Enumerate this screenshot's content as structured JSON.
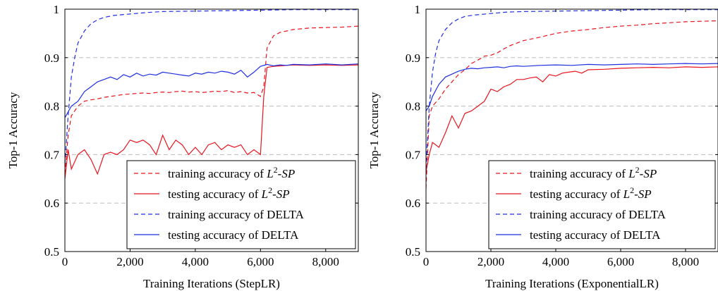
{
  "colors": {
    "red": "#e8141e",
    "blue": "#1f2fe0",
    "grid": "#bdbdbd",
    "axis": "#000000"
  },
  "legend_entries": [
    {
      "prefix": "training accuracy of ",
      "math": "L",
      "sup": "2",
      "suffix": "-SP",
      "color": "#e8141e",
      "dash": true
    },
    {
      "prefix": "testing accuracy of ",
      "math": "L",
      "sup": "2",
      "suffix": "-SP",
      "color": "#e8141e",
      "dash": false
    },
    {
      "prefix": "training accuracy of DELTA",
      "math": "",
      "sup": "",
      "suffix": "",
      "color": "#1f2fe0",
      "dash": true
    },
    {
      "prefix": "testing accuracy of DELTA",
      "math": "",
      "sup": "",
      "suffix": "",
      "color": "#1f2fe0",
      "dash": false
    }
  ],
  "chart_data": [
    {
      "type": "line",
      "xlabel": "Training Iterations (StepLR)",
      "ylabel": "Top-1 Accuracy",
      "xlim": [
        0,
        9000
      ],
      "ylim": [
        0.5,
        1.0
      ],
      "xticks": [
        0,
        2000,
        4000,
        6000,
        8000
      ],
      "xtick_labels": [
        "0",
        "2,000",
        "4,000",
        "6,000",
        "8,000"
      ],
      "yticks": [
        0.5,
        0.6,
        0.7,
        0.8,
        0.9,
        1.0
      ],
      "ytick_labels": [
        "0.5",
        "0.6",
        "0.7",
        "0.8",
        "0.9",
        "1"
      ],
      "grid": "horizontal-dashed",
      "legend_position": "bottom-right",
      "series": [
        {
          "name": "training accuracy of L2-SP",
          "x": [
            0,
            100,
            200,
            400,
            600,
            800,
            1000,
            1200,
            1400,
            1600,
            1800,
            2000,
            2200,
            2400,
            2600,
            2800,
            3000,
            3200,
            3400,
            3600,
            3800,
            4000,
            4200,
            4400,
            4600,
            4800,
            5000,
            5200,
            5400,
            5600,
            5800,
            6000,
            6100,
            6200,
            6400,
            6600,
            6800,
            7000,
            7500,
            8000,
            8500,
            9000
          ],
          "y": [
            0.66,
            0.74,
            0.78,
            0.8,
            0.81,
            0.813,
            0.815,
            0.818,
            0.82,
            0.822,
            0.824,
            0.825,
            0.826,
            0.827,
            0.826,
            0.828,
            0.829,
            0.828,
            0.83,
            0.831,
            0.829,
            0.83,
            0.828,
            0.829,
            0.831,
            0.83,
            0.832,
            0.828,
            0.83,
            0.827,
            0.828,
            0.82,
            0.84,
            0.92,
            0.945,
            0.952,
            0.955,
            0.958,
            0.961,
            0.962,
            0.963,
            0.965
          ]
        },
        {
          "name": "testing accuracy of L2-SP",
          "x": [
            0,
            100,
            200,
            400,
            600,
            800,
            1000,
            1200,
            1400,
            1600,
            1800,
            2000,
            2200,
            2400,
            2600,
            2800,
            3000,
            3200,
            3400,
            3600,
            3800,
            4000,
            4200,
            4400,
            4600,
            4800,
            5000,
            5200,
            5400,
            5600,
            5800,
            6000,
            6100,
            6200,
            6400,
            6600,
            6800,
            7000,
            7500,
            8000,
            8500,
            9000
          ],
          "y": [
            0.65,
            0.71,
            0.67,
            0.7,
            0.71,
            0.69,
            0.66,
            0.7,
            0.705,
            0.7,
            0.71,
            0.73,
            0.725,
            0.73,
            0.72,
            0.7,
            0.74,
            0.71,
            0.73,
            0.72,
            0.7,
            0.715,
            0.7,
            0.72,
            0.725,
            0.71,
            0.72,
            0.715,
            0.72,
            0.7,
            0.71,
            0.7,
            0.82,
            0.88,
            0.882,
            0.883,
            0.884,
            0.885,
            0.884,
            0.885,
            0.884,
            0.885
          ]
        },
        {
          "name": "training accuracy of DELTA",
          "x": [
            0,
            100,
            200,
            300,
            400,
            600,
            800,
            1000,
            1200,
            1500,
            2000,
            2500,
            3000,
            4000,
            5000,
            6000,
            7000,
            8000,
            9000
          ],
          "y": [
            0.68,
            0.78,
            0.86,
            0.9,
            0.93,
            0.955,
            0.97,
            0.978,
            0.983,
            0.987,
            0.99,
            0.993,
            0.995,
            0.996,
            0.997,
            0.998,
            0.999,
            0.999,
            0.999
          ]
        },
        {
          "name": "testing accuracy of DELTA",
          "x": [
            0,
            200,
            400,
            600,
            800,
            1000,
            1200,
            1400,
            1600,
            1800,
            2000,
            2200,
            2400,
            2600,
            2800,
            3000,
            3200,
            3400,
            3600,
            3800,
            4000,
            4200,
            4400,
            4600,
            4800,
            5000,
            5200,
            5400,
            5600,
            5800,
            6000,
            6200,
            6400,
            6600,
            6800,
            7000,
            7500,
            8000,
            8500,
            9000
          ],
          "y": [
            0.776,
            0.8,
            0.81,
            0.83,
            0.84,
            0.85,
            0.855,
            0.86,
            0.855,
            0.865,
            0.86,
            0.868,
            0.862,
            0.866,
            0.864,
            0.87,
            0.868,
            0.866,
            0.864,
            0.862,
            0.868,
            0.866,
            0.87,
            0.868,
            0.872,
            0.87,
            0.866,
            0.874,
            0.86,
            0.87,
            0.882,
            0.886,
            0.883,
            0.885,
            0.884,
            0.886,
            0.885,
            0.887,
            0.885,
            0.887
          ]
        }
      ]
    },
    {
      "type": "line",
      "xlabel": "Training Iterations (ExponentialLR)",
      "ylabel": "Top-1 Accuracy",
      "xlim": [
        0,
        9000
      ],
      "ylim": [
        0.5,
        1.0
      ],
      "xticks": [
        0,
        2000,
        4000,
        6000,
        8000
      ],
      "xtick_labels": [
        "0",
        "2,000",
        "4,000",
        "6,000",
        "8,000"
      ],
      "yticks": [
        0.5,
        0.6,
        0.7,
        0.8,
        0.9,
        1.0
      ],
      "ytick_labels": [
        "0.5",
        "0.6",
        "0.7",
        "0.8",
        "0.9",
        "1"
      ],
      "grid": "horizontal-dashed",
      "legend_position": "bottom-right",
      "series": [
        {
          "name": "training accuracy of L2-SP",
          "x": [
            0,
            100,
            200,
            400,
            600,
            800,
            1000,
            1200,
            1400,
            1600,
            1800,
            2000,
            2200,
            2400,
            2600,
            2800,
            3000,
            3500,
            4000,
            4500,
            5000,
            5500,
            6000,
            6500,
            7000,
            7500,
            8000,
            8500,
            9000
          ],
          "y": [
            0.63,
            0.78,
            0.8,
            0.815,
            0.835,
            0.85,
            0.865,
            0.875,
            0.888,
            0.895,
            0.903,
            0.905,
            0.91,
            0.918,
            0.925,
            0.93,
            0.935,
            0.942,
            0.95,
            0.955,
            0.958,
            0.962,
            0.965,
            0.967,
            0.97,
            0.972,
            0.974,
            0.975,
            0.976
          ]
        },
        {
          "name": "testing accuracy of L2-SP",
          "x": [
            0,
            100,
            200,
            400,
            600,
            800,
            1000,
            1200,
            1400,
            1600,
            1800,
            2000,
            2200,
            2400,
            2600,
            2800,
            3000,
            3200,
            3400,
            3600,
            3800,
            4000,
            4200,
            4400,
            4600,
            4800,
            5000,
            5500,
            6000,
            6500,
            7000,
            7500,
            8000,
            8500,
            9000
          ],
          "y": [
            0.665,
            0.7,
            0.725,
            0.715,
            0.745,
            0.78,
            0.755,
            0.785,
            0.79,
            0.8,
            0.81,
            0.835,
            0.83,
            0.84,
            0.845,
            0.855,
            0.855,
            0.858,
            0.86,
            0.85,
            0.865,
            0.862,
            0.868,
            0.87,
            0.872,
            0.868,
            0.875,
            0.876,
            0.878,
            0.879,
            0.88,
            0.879,
            0.881,
            0.88,
            0.881
          ]
        },
        {
          "name": "training accuracy of DELTA",
          "x": [
            0,
            100,
            200,
            300,
            400,
            600,
            800,
            1000,
            1200,
            1500,
            2000,
            2500,
            3000,
            4000,
            5000,
            6000,
            7000,
            8000,
            9000
          ],
          "y": [
            0.67,
            0.8,
            0.87,
            0.91,
            0.935,
            0.958,
            0.972,
            0.98,
            0.985,
            0.988,
            0.991,
            0.994,
            0.995,
            0.996,
            0.997,
            0.998,
            0.999,
            0.999,
            0.999
          ]
        },
        {
          "name": "testing accuracy of DELTA",
          "x": [
            0,
            100,
            200,
            400,
            600,
            800,
            1000,
            1200,
            1400,
            1600,
            1800,
            2000,
            2200,
            2400,
            2600,
            2800,
            3000,
            3500,
            4000,
            4500,
            5000,
            5500,
            6000,
            6500,
            7000,
            7500,
            8000,
            8500,
            9000
          ],
          "y": [
            0.79,
            0.8,
            0.82,
            0.845,
            0.86,
            0.866,
            0.872,
            0.876,
            0.878,
            0.877,
            0.879,
            0.88,
            0.881,
            0.879,
            0.882,
            0.883,
            0.882,
            0.884,
            0.885,
            0.884,
            0.886,
            0.885,
            0.886,
            0.887,
            0.886,
            0.887,
            0.888,
            0.887,
            0.888
          ]
        }
      ]
    }
  ]
}
